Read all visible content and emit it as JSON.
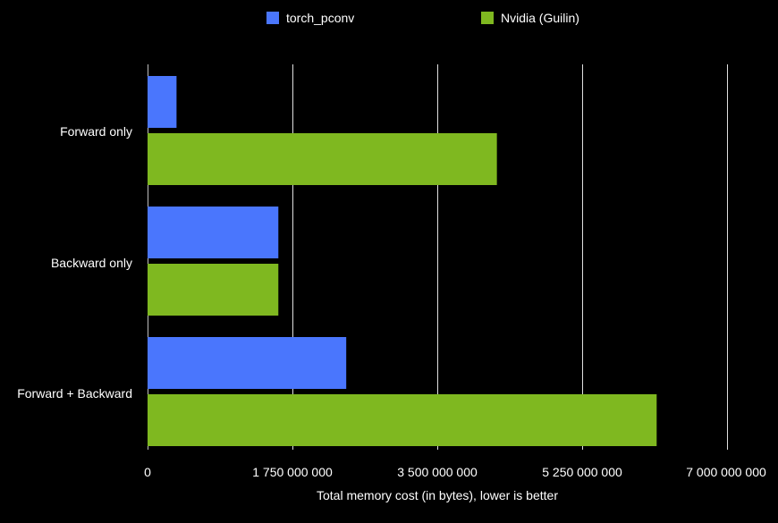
{
  "chart_data": {
    "type": "bar",
    "orientation": "horizontal",
    "categories": [
      "Forward only",
      "Backward only",
      "Forward + Backward"
    ],
    "series": [
      {
        "name": "torch_pconv",
        "color": "#4a76fd",
        "values": [
          350000000,
          1580000000,
          2400000000
        ]
      },
      {
        "name": "Nvidia (Guilin)",
        "color": "#7fb820",
        "values": [
          4220000000,
          1580000000,
          6150000000
        ]
      }
    ],
    "xlabel": "Total memory cost (in bytes), lower is better",
    "ylabel": "",
    "xlim": [
      0,
      7000000000
    ],
    "ticks": [
      0,
      1750000000,
      3500000000,
      5250000000,
      7000000000
    ],
    "tick_labels": [
      "0",
      "1 750 000 000",
      "3 500 000 000",
      "5 250 000 000",
      "7 000 000 000"
    ],
    "grid": true,
    "legend_position": "top",
    "background": "#000000"
  }
}
